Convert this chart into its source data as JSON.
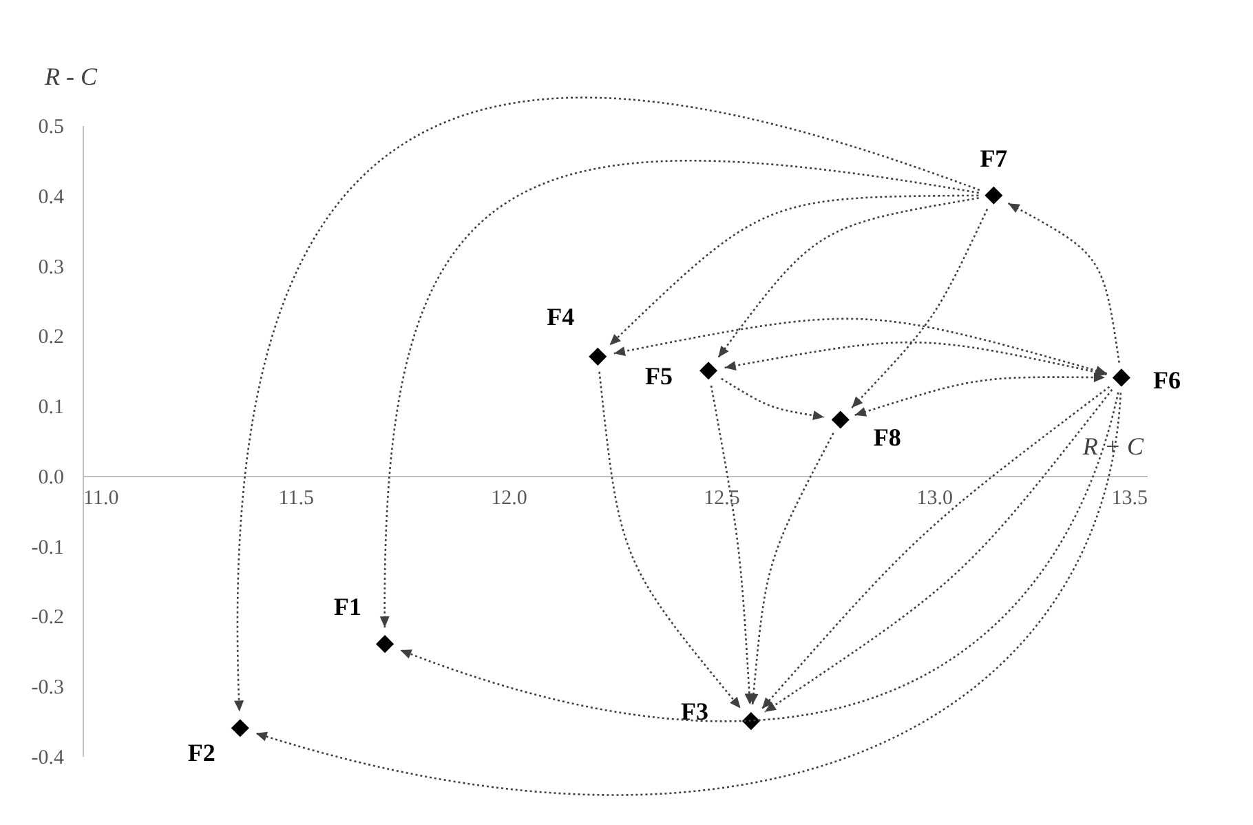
{
  "chart_data": {
    "type": "scatter",
    "xlabel": "R + C",
    "ylabel": "R - C",
    "x": [
      11.71,
      11.37,
      12.57,
      12.21,
      12.47,
      13.44,
      13.14,
      12.78
    ],
    "values": [
      -0.24,
      -0.36,
      -0.35,
      0.17,
      0.15,
      0.14,
      0.4,
      0.08
    ],
    "color": "#000000",
    "marker": "diamond",
    "grid": false,
    "xlim": [
      11.0,
      13.5
    ],
    "xticks": [
      {
        "value": 11,
        "label": "11.0"
      },
      {
        "value": 11.5,
        "label": "11.5"
      },
      {
        "value": 12,
        "label": "12.0"
      },
      {
        "value": 12.5,
        "label": "12.5"
      },
      {
        "value": 13,
        "label": "13.0"
      },
      {
        "value": 13.5,
        "label": "13.5"
      }
    ],
    "ylim": [
      -0.4,
      0.5
    ],
    "yticks": [
      {
        "value": -0.4,
        "label": "-0.4"
      },
      {
        "value": -0.3,
        "label": "-0.3"
      },
      {
        "value": -0.2,
        "label": "-0.2"
      },
      {
        "value": -0.1,
        "label": "-0.1"
      },
      {
        "value": 0,
        "label": "0.0"
      },
      {
        "value": 0.1,
        "label": "0.1"
      },
      {
        "value": 0.2,
        "label": "0.2"
      },
      {
        "value": 0.3,
        "label": "0.3"
      },
      {
        "value": 0.4,
        "label": "0.4"
      },
      {
        "value": 0.5,
        "label": "0.5"
      }
    ],
    "annotations": [
      {
        "text": "F1",
        "x": 11.71,
        "y": -0.24
      },
      {
        "text": "F2",
        "x": 11.37,
        "y": -0.36
      },
      {
        "text": "F3",
        "x": 12.57,
        "y": -0.35
      },
      {
        "text": "F4",
        "x": 12.21,
        "y": 0.17
      },
      {
        "text": "F5",
        "x": 12.47,
        "y": 0.15
      },
      {
        "text": "F6",
        "x": 13.44,
        "y": 0.14
      },
      {
        "text": "F7",
        "x": 13.14,
        "y": 0.4
      },
      {
        "text": "F8",
        "x": 12.78,
        "y": 0.08
      }
    ]
  }
}
